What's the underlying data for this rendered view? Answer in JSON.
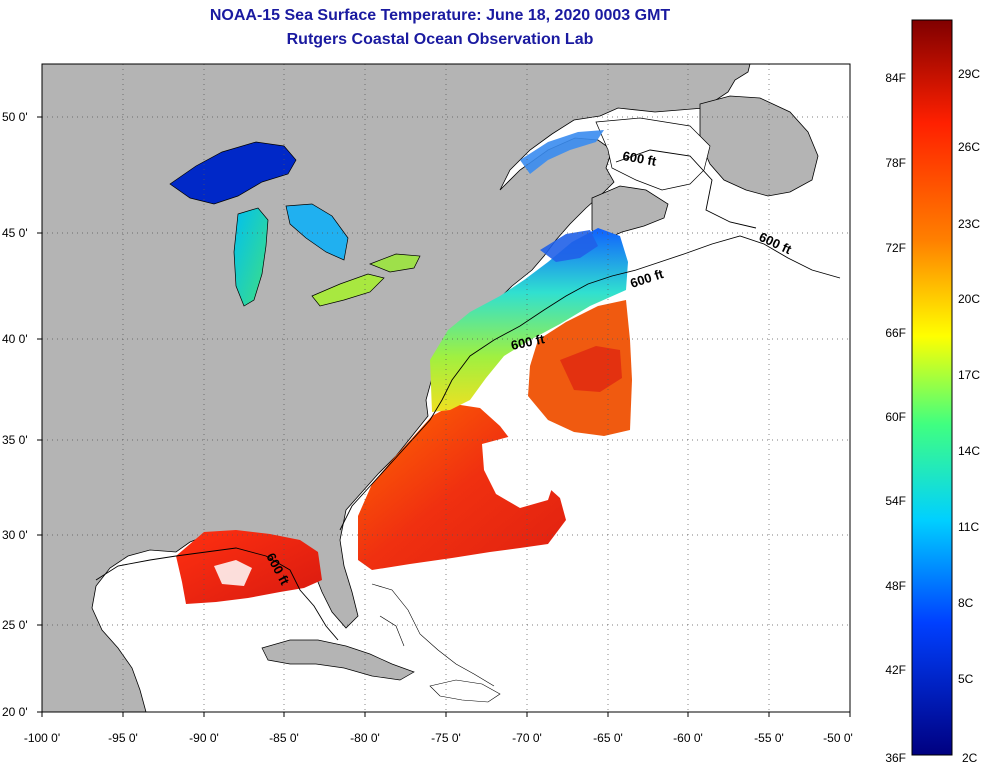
{
  "title": {
    "line1": "NOAA-15 Sea Surface Temperature:  June 18, 2020 0003 GMT",
    "line2": "Rutgers Coastal Ocean Observation Lab"
  },
  "map": {
    "lat_labels": [
      "50 0'",
      "45 0'",
      "40 0'",
      "35 0'",
      "30 0'",
      "25 0'",
      "20 0'"
    ],
    "lon_labels": [
      "-100 0'",
      "-95 0'",
      "-90 0'",
      "-85 0'",
      "-80 0'",
      "-75 0'",
      "-70 0'",
      "-65 0'",
      "-60 0'",
      "-55 0'",
      "-50 0'"
    ],
    "isobath_label": "600 ft",
    "colors": {
      "land": "#b4b4b4",
      "ocean_no_data": "#ffffff",
      "outline": "#000000"
    }
  },
  "colorbar": {
    "f_labels": [
      "84F",
      "78F",
      "72F",
      "66F",
      "60F",
      "54F",
      "48F",
      "42F",
      "36F"
    ],
    "c_labels": [
      "29C",
      "26C",
      "23C",
      "20C",
      "17C",
      "14C",
      "11C",
      "8C",
      "5C",
      "2C"
    ],
    "gradient": [
      "#800000",
      "#ff2000",
      "#ff8000",
      "#ffff00",
      "#40ff80",
      "#00c0ff",
      "#0040ff",
      "#000080"
    ]
  }
}
